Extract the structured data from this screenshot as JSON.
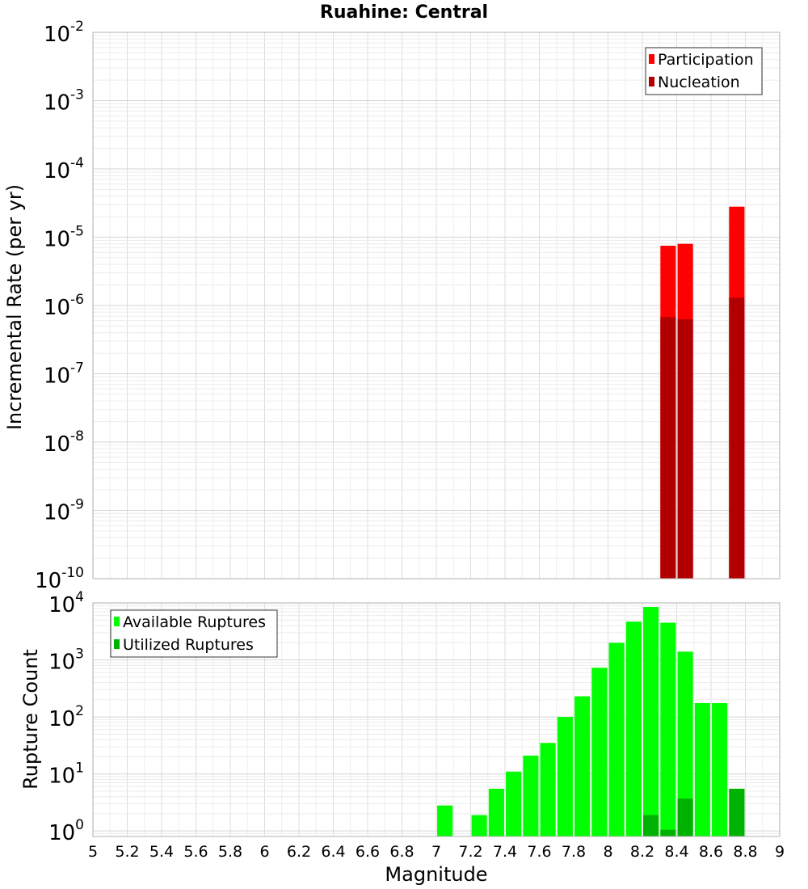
{
  "chart_data": [
    {
      "type": "bar",
      "title": "Ruahine: Central",
      "xlabel": "",
      "ylabel": "Incremental Rate (per yr)",
      "yscale": "log",
      "xlim": [
        5,
        9
      ],
      "ylim": [
        1e-10,
        0.01
      ],
      "y_tick_exponents": [
        -10,
        -9,
        -8,
        -7,
        -6,
        -5,
        -4,
        -3,
        -2
      ],
      "grid": true,
      "legend_position": "top-right",
      "bar_width": 0.09,
      "series": [
        {
          "name": "Participation",
          "color": "#ff0000",
          "x": [
            8.35,
            8.45,
            8.75
          ],
          "values": [
            7.5e-06,
            8e-06,
            2.8e-05
          ]
        },
        {
          "name": "Nucleation",
          "color": "#b20000",
          "x": [
            8.35,
            8.45,
            8.75
          ],
          "values": [
            6.8e-07,
            6.3e-07,
            1.3e-06
          ]
        }
      ]
    },
    {
      "type": "bar",
      "title": "",
      "xlabel": "Magnitude",
      "ylabel": "Rupture Count",
      "yscale": "log",
      "xlim": [
        5,
        9
      ],
      "ylim": [
        0.8,
        10000
      ],
      "y_tick_exponents": [
        0,
        1,
        2,
        3,
        4
      ],
      "x_ticks": [
        "5",
        "5.2",
        "5.4",
        "5.6",
        "5.8",
        "6",
        "6.2",
        "6.4",
        "6.6",
        "6.8",
        "7",
        "7.2",
        "7.4",
        "7.6",
        "7.8",
        "8",
        "8.2",
        "8.4",
        "8.6",
        "8.8",
        "9"
      ],
      "grid": true,
      "legend_position": "top-left",
      "bar_width": 0.09,
      "series": [
        {
          "name": "Available Ruptures",
          "color": "#00ff00",
          "x": [
            7.05,
            7.25,
            7.35,
            7.45,
            7.55,
            7.65,
            7.75,
            7.85,
            7.95,
            8.05,
            8.15,
            8.25,
            8.35,
            8.45,
            8.55,
            8.65,
            8.75
          ],
          "values": [
            2.8,
            1.9,
            5.5,
            11,
            21,
            35,
            100,
            230,
            730,
            2000,
            4700,
            8500,
            4500,
            1400,
            175,
            175,
            5.5
          ]
        },
        {
          "name": "Utilized Ruptures",
          "color": "#00b200",
          "x": [
            8.25,
            8.35,
            8.45,
            8.75
          ],
          "values": [
            1.9,
            1.05,
            3.7,
            5.5
          ]
        }
      ]
    }
  ]
}
